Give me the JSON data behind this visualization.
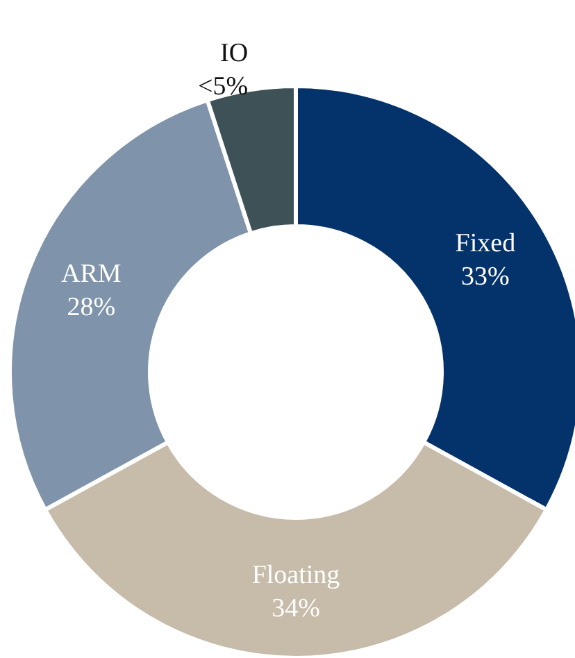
{
  "chart_data": {
    "type": "donut",
    "categories": [
      "Fixed",
      "Floating",
      "ARM",
      "IO"
    ],
    "values": [
      33,
      34,
      28,
      5
    ],
    "colors": [
      "#04336b",
      "#c7bba9",
      "#7f94aa",
      "#3d5157"
    ],
    "value_labels": [
      "33%",
      "34%",
      "28%",
      "<5%"
    ],
    "legend": false
  }
}
